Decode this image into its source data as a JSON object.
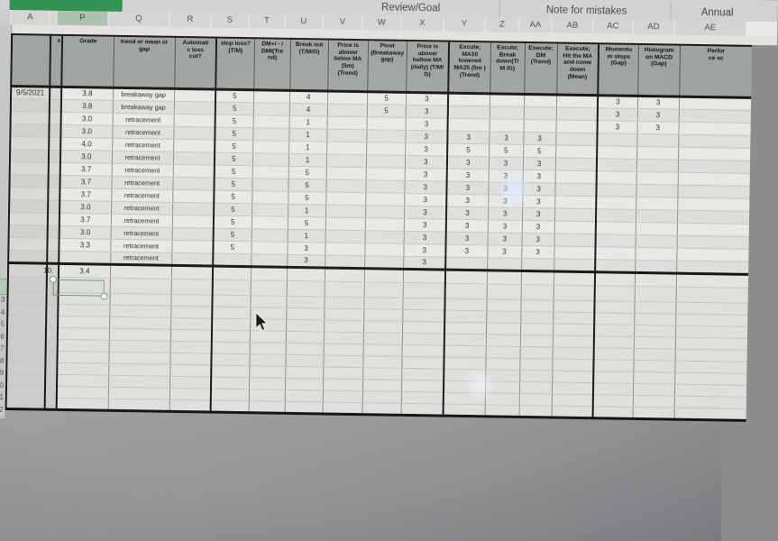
{
  "app": {
    "tabs": [
      {
        "label": "Review/Goal"
      },
      {
        "label": "Note for mistakes"
      },
      {
        "label": "Annual"
      }
    ],
    "active_tab_color": "#2d9150",
    "selection_color": "#6f9e78"
  },
  "sheet": {
    "column_letters": [
      "A",
      "",
      "P",
      "Q",
      "R",
      "S",
      "T",
      "U",
      "V",
      "W",
      "X",
      "Y",
      "Z",
      "AA",
      "AB",
      "AC",
      "AD",
      "AE"
    ],
    "selected_column": "P",
    "headers": [
      "",
      "s",
      "Grade",
      "trend or mean  or\ngap",
      "Automati\nc loss\ncut?",
      "stop loss?\n(T/M)",
      "DM+/ - /\nDMI(Tre\nnd)",
      "Break out\n(T/M/G)",
      "Price is\nabove/\nbelow MA\n(5m)\n(Trend)",
      "Pivot\n(Breakaway\ngap)",
      "Price is\nabove/\nbellow MA\n(daily) (T/M/\nG)",
      "Excute;\nMA10\nlowered\nMA25 (5m )\n(Trend)",
      "Excute;\nBreak\ndown(T/\nM /G)",
      "Execute;\nDM\n(Trend)",
      "Execute;\nHit the MA\nand come\ndown\n(Mean)",
      "Momentu\nm stops\n(Gap)",
      "Histogram\non MACD\n(Gap)",
      "Perfor\nce sc"
    ],
    "rows": [
      [
        "9/5/2021",
        "",
        "3.8",
        "breakaway gap",
        "",
        "5",
        "",
        "4",
        "",
        "5",
        "3",
        "",
        "",
        "",
        "",
        "3",
        "3",
        ""
      ],
      [
        "",
        "",
        "3.8",
        "breakaway gap",
        "",
        "5",
        "",
        "4",
        "",
        "5",
        "3",
        "",
        "",
        "",
        "",
        "3",
        "3",
        ""
      ],
      [
        "",
        "",
        "3.0",
        "retracement",
        "",
        "5",
        "",
        "1",
        "",
        "",
        "3",
        "",
        "",
        "",
        "",
        "3",
        "3",
        ""
      ],
      [
        "",
        "",
        "3.0",
        "retracement",
        "",
        "5",
        "",
        "1",
        "",
        "",
        "3",
        "3",
        "3",
        "3",
        "",
        "",
        "",
        ""
      ],
      [
        "",
        "",
        "4.0",
        "retracement",
        "",
        "5",
        "",
        "1",
        "",
        "",
        "3",
        "5",
        "5",
        "5",
        "",
        "",
        "",
        ""
      ],
      [
        "",
        "",
        "3.0",
        "retracement",
        "",
        "5",
        "",
        "1",
        "",
        "",
        "3",
        "3",
        "3",
        "3",
        "",
        "",
        "",
        ""
      ],
      [
        "",
        "",
        "3.7",
        "retracement",
        "",
        "5",
        "",
        "5",
        "",
        "",
        "3",
        "3",
        "3",
        "3",
        "",
        "",
        "",
        ""
      ],
      [
        "",
        "",
        "3.7",
        "retracement",
        "",
        "5",
        "",
        "5",
        "",
        "",
        "3",
        "3",
        "3",
        "3",
        "",
        "",
        "",
        ""
      ],
      [
        "",
        "",
        "3.7",
        "retracement",
        "",
        "5",
        "",
        "5",
        "",
        "",
        "3",
        "3",
        "3",
        "3",
        "",
        "",
        "",
        ""
      ],
      [
        "",
        "",
        "3.0",
        "retracement",
        "",
        "5",
        "",
        "1",
        "",
        "",
        "3",
        "3",
        "3",
        "3",
        "",
        "",
        "",
        ""
      ],
      [
        "",
        "",
        "3.7",
        "retracement",
        "",
        "5",
        "",
        "5",
        "",
        "",
        "3",
        "3",
        "3",
        "3",
        "",
        "",
        "",
        ""
      ],
      [
        "",
        "",
        "3.0",
        "retracement",
        "",
        "5",
        "",
        "1",
        "",
        "",
        "3",
        "3",
        "3",
        "3",
        "",
        "",
        "",
        ""
      ],
      [
        "",
        "",
        "3.3",
        "retracement",
        "",
        "5",
        "",
        "3",
        "",
        "",
        "3",
        "3",
        "3",
        "3",
        "",
        "",
        "",
        ""
      ],
      [
        "",
        "",
        "",
        "retracement",
        "",
        "",
        "",
        "3",
        "",
        "",
        "3",
        "",
        "",
        "",
        "",
        "",
        "",
        ""
      ]
    ],
    "summary_row": [
      "",
      "10.",
      "3.4",
      "",
      "",
      "",
      "",
      "",
      "",
      "",
      "",
      "",
      "",
      "",
      "",
      "",
      "",
      ""
    ],
    "row_digits": [
      "3",
      "4",
      "5",
      "6",
      "7",
      "8",
      "9",
      "0",
      "1",
      "2"
    ]
  }
}
